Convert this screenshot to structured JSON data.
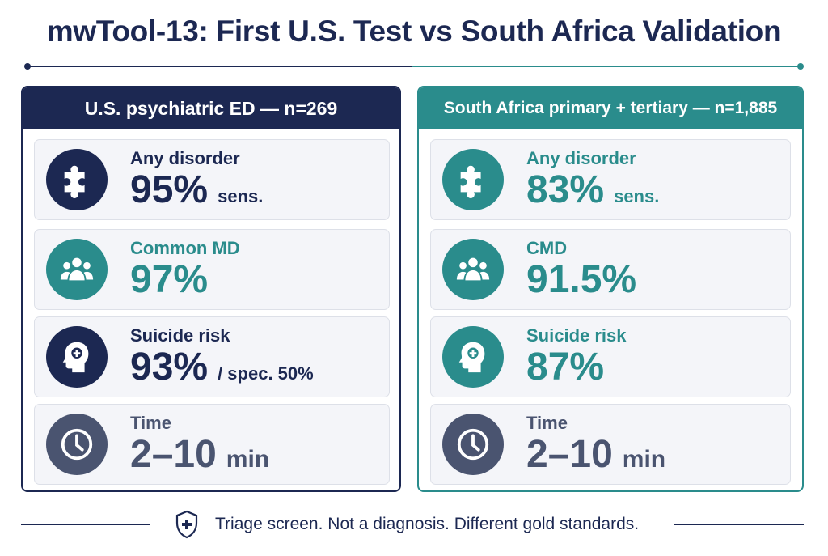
{
  "title": "mwTool-13: First U.S. Test vs South Africa Validation",
  "panels": {
    "us": {
      "header": "U.S. psychiatric ED — n=269",
      "cards": [
        {
          "label": "Any disorder",
          "value": "95%",
          "suffix": "sens.",
          "icon": "puzzle-icon"
        },
        {
          "label": "Common MD",
          "value": "97%",
          "suffix": "",
          "icon": "people-icon"
        },
        {
          "label": "Suicide risk",
          "value": "93%",
          "suffix": "/ spec. 50%",
          "icon": "head-plus-icon"
        },
        {
          "label": "Time",
          "value": "2–10",
          "suffix": "min",
          "icon": "clock-icon"
        }
      ]
    },
    "sa": {
      "header": "South Africa primary + tertiary — n=1,885",
      "cards": [
        {
          "label": "Any disorder",
          "value": "83%",
          "suffix": "sens.",
          "icon": "puzzle-icon"
        },
        {
          "label": "CMD",
          "value": "91.5%",
          "suffix": "",
          "icon": "people-icon"
        },
        {
          "label": "Suicide risk",
          "value": "87%",
          "suffix": "",
          "icon": "head-plus-icon"
        },
        {
          "label": "Time",
          "value": "2–10",
          "suffix": "min",
          "icon": "clock-icon"
        }
      ]
    }
  },
  "footer": {
    "note": "Triage screen. Not a diagnosis. Different gold standards.",
    "icon": "shield-plus-icon"
  },
  "colors": {
    "navy": "#1c2852",
    "teal": "#2a8c8c",
    "slate": "#4a5470"
  }
}
